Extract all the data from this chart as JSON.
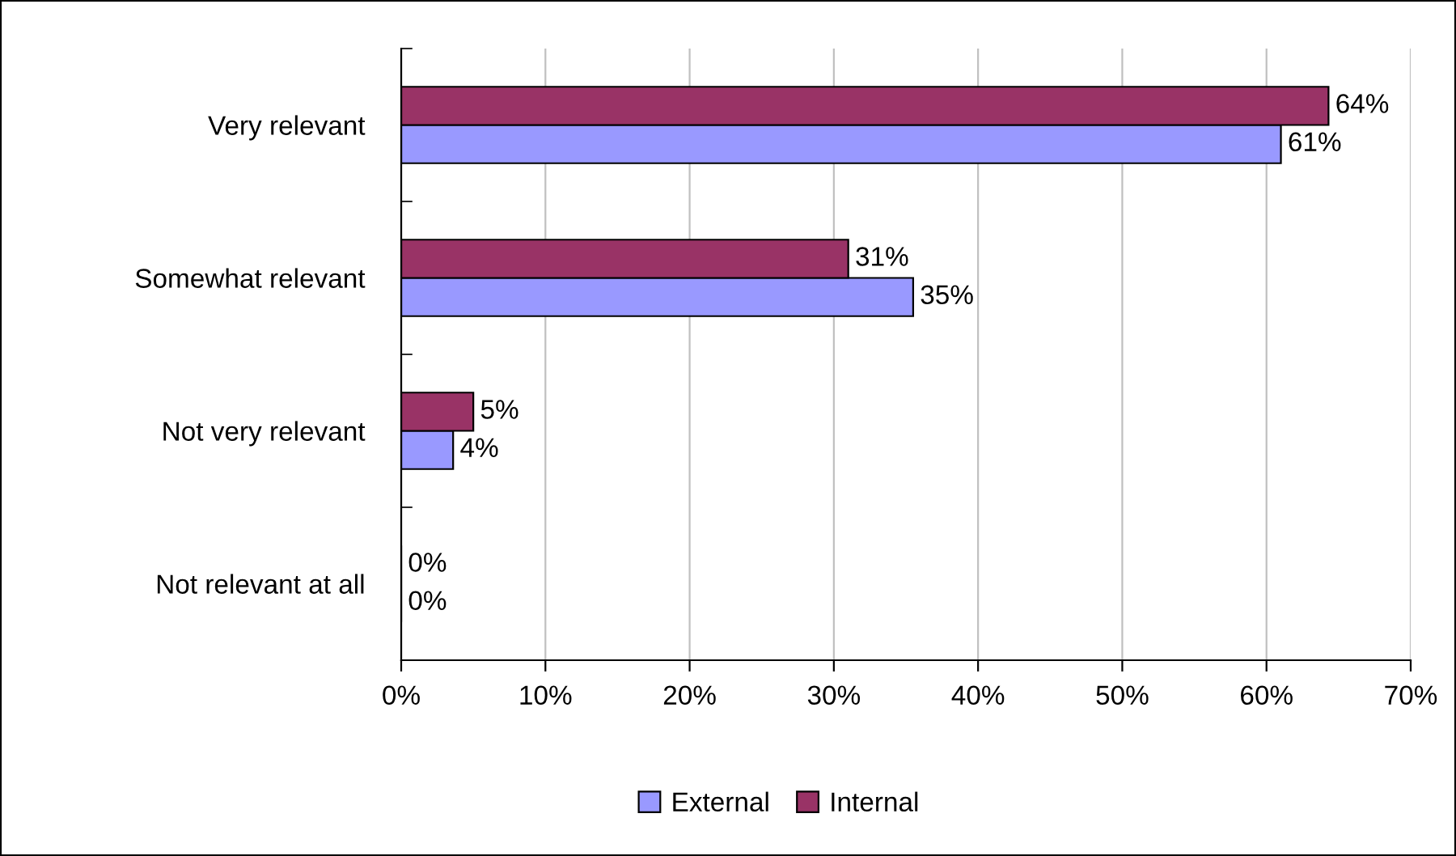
{
  "chart_data": {
    "type": "bar",
    "orientation": "horizontal",
    "categories": [
      "Very relevant",
      "Somewhat relevant",
      "Not very relevant",
      "Not relevant at all"
    ],
    "series": [
      {
        "name": "External",
        "color": "#9999ff",
        "values": [
          61,
          35.5,
          3.6,
          0
        ],
        "value_labels": [
          "61%",
          "35%",
          "4%",
          "0%"
        ]
      },
      {
        "name": "Internal",
        "color": "#993366",
        "values": [
          64.3,
          31,
          5,
          0
        ],
        "value_labels": [
          "64%",
          "31%",
          "5%",
          "0%"
        ]
      }
    ],
    "xlim": [
      0,
      70
    ],
    "xticks": [
      {
        "value": 0,
        "label": "0%"
      },
      {
        "value": 10,
        "label": "10%"
      },
      {
        "value": 20,
        "label": "20%"
      },
      {
        "value": 30,
        "label": "30%"
      },
      {
        "value": 40,
        "label": "40%"
      },
      {
        "value": 50,
        "label": "50%"
      },
      {
        "value": 60,
        "label": "60%"
      },
      {
        "value": 70,
        "label": "70%"
      }
    ],
    "grid": "x",
    "legend": "bottom"
  }
}
